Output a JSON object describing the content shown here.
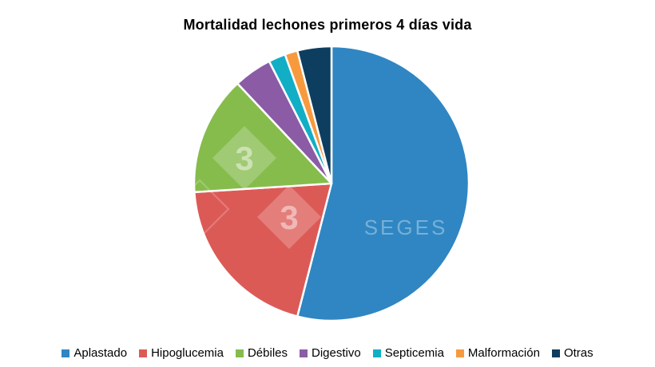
{
  "title": "Mortalidad lechones primeros 4 días vida",
  "watermarks": {
    "seges": "SEGES",
    "logo_digit": "3"
  },
  "chart_data": {
    "type": "pie",
    "title": "Mortalidad lechones primeros 4 días vida",
    "categories": [
      "Aplastado",
      "Hipoglucemia",
      "Débiles",
      "Digestivo",
      "Septicemia",
      "Malformación",
      "Otras"
    ],
    "values": [
      54,
      20,
      14,
      4.5,
      2,
      1.5,
      4
    ],
    "unit": "percent",
    "colors": [
      "#2F86C2",
      "#DC5A56",
      "#86BC4C",
      "#8B5CA5",
      "#12AEC5",
      "#F79A3E",
      "#0E3E5F"
    ],
    "slice_border_color": "#FFFFFF",
    "start_angle_deg": 0,
    "direction": "clockwise",
    "legend_position": "bottom",
    "grid": false
  }
}
